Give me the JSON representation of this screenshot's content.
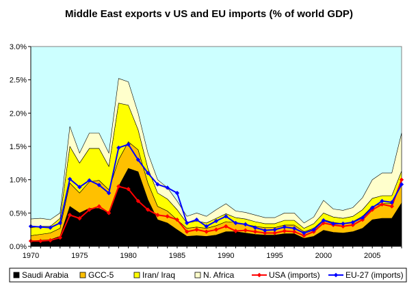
{
  "chart_data": {
    "type": "area",
    "title": "Middle East exports v US and EU imports (% of world GDP)",
    "xlabel": "",
    "ylabel": "",
    "xlim": [
      1970,
      2008
    ],
    "ylim": [
      0,
      3.0
    ],
    "y_tick_values": [
      0,
      0.5,
      1.0,
      1.5,
      2.0,
      2.5,
      3.0
    ],
    "y_tick_labels": [
      "0.0%",
      "0.5%",
      "1.0%",
      "1.5%",
      "2.0%",
      "2.5%",
      "3.0%"
    ],
    "x_tick_labels": [
      "1970",
      "1975",
      "1980",
      "1985",
      "1990",
      "1995",
      "2000",
      "2005"
    ],
    "grid": false,
    "legend_position": "bottom",
    "plot_background": "#ccffff",
    "x": [
      1970,
      1971,
      1972,
      1973,
      1974,
      1975,
      1976,
      1977,
      1978,
      1979,
      1980,
      1981,
      1982,
      1983,
      1984,
      1985,
      1986,
      1987,
      1988,
      1989,
      1990,
      1991,
      1992,
      1993,
      1994,
      1995,
      1996,
      1997,
      1998,
      1999,
      2000,
      2001,
      2002,
      2003,
      2004,
      2005,
      2006,
      2007,
      2008
    ],
    "stacked_series": [
      {
        "name": "Saudi Arabia",
        "color": "#000000",
        "values": [
          0.08,
          0.09,
          0.1,
          0.15,
          0.6,
          0.5,
          0.57,
          0.57,
          0.5,
          0.9,
          1.17,
          1.12,
          0.7,
          0.4,
          0.35,
          0.25,
          0.15,
          0.16,
          0.15,
          0.17,
          0.22,
          0.22,
          0.2,
          0.18,
          0.17,
          0.17,
          0.19,
          0.19,
          0.12,
          0.15,
          0.24,
          0.21,
          0.2,
          0.22,
          0.27,
          0.4,
          0.42,
          0.42,
          0.65
        ]
      },
      {
        "name": "GCC-5",
        "color": "#ffc000",
        "values": [
          0.08,
          0.09,
          0.1,
          0.12,
          0.35,
          0.3,
          0.4,
          0.42,
          0.35,
          0.4,
          0.4,
          0.33,
          0.25,
          0.2,
          0.18,
          0.15,
          0.12,
          0.13,
          0.12,
          0.14,
          0.15,
          0.14,
          0.13,
          0.12,
          0.11,
          0.11,
          0.13,
          0.13,
          0.1,
          0.12,
          0.16,
          0.15,
          0.14,
          0.15,
          0.18,
          0.2,
          0.22,
          0.22,
          0.3
        ]
      },
      {
        "name": "Iran/ Iraq",
        "color": "#ffff00",
        "values": [
          0.12,
          0.12,
          0.1,
          0.15,
          0.55,
          0.45,
          0.5,
          0.48,
          0.35,
          0.85,
          0.55,
          0.3,
          0.22,
          0.2,
          0.18,
          0.15,
          0.08,
          0.09,
          0.08,
          0.11,
          0.12,
          0.07,
          0.08,
          0.07,
          0.06,
          0.06,
          0.07,
          0.07,
          0.05,
          0.07,
          0.1,
          0.08,
          0.08,
          0.08,
          0.1,
          0.12,
          0.12,
          0.12,
          0.18
        ]
      },
      {
        "name": "N. Africa",
        "color": "#ffffcc",
        "values": [
          0.13,
          0.12,
          0.1,
          0.08,
          0.3,
          0.15,
          0.23,
          0.23,
          0.2,
          0.37,
          0.35,
          0.25,
          0.23,
          0.2,
          0.17,
          0.13,
          0.1,
          0.12,
          0.1,
          0.13,
          0.15,
          0.1,
          0.1,
          0.1,
          0.09,
          0.09,
          0.11,
          0.11,
          0.08,
          0.1,
          0.19,
          0.12,
          0.12,
          0.13,
          0.18,
          0.28,
          0.34,
          0.34,
          0.57
        ]
      }
    ],
    "line_series": [
      {
        "name": "USA (imports)",
        "color": "#ff0000",
        "values": [
          0.08,
          0.08,
          0.09,
          0.13,
          0.47,
          0.42,
          0.55,
          0.6,
          0.5,
          0.9,
          0.86,
          0.68,
          0.55,
          0.47,
          0.45,
          0.4,
          0.22,
          0.25,
          0.22,
          0.25,
          0.3,
          0.23,
          0.24,
          0.22,
          0.2,
          0.2,
          0.23,
          0.22,
          0.16,
          0.22,
          0.35,
          0.32,
          0.3,
          0.32,
          0.4,
          0.55,
          0.63,
          0.6,
          1.0
        ]
      },
      {
        "name": "EU-27 (imports)",
        "color": "#0000ff",
        "values": [
          0.3,
          0.29,
          0.28,
          0.35,
          1.01,
          0.89,
          0.99,
          0.92,
          0.8,
          1.48,
          1.53,
          1.3,
          1.1,
          0.93,
          0.88,
          0.8,
          0.35,
          0.4,
          0.3,
          0.38,
          0.45,
          0.35,
          0.33,
          0.28,
          0.24,
          0.25,
          0.29,
          0.27,
          0.2,
          0.25,
          0.39,
          0.34,
          0.34,
          0.36,
          0.43,
          0.58,
          0.68,
          0.66,
          0.93
        ]
      }
    ],
    "legend": [
      "Saudi Arabia",
      "GCC-5",
      "Iran/ Iraq",
      "N. Africa",
      "USA (imports)",
      "EU-27 (imports)"
    ]
  }
}
